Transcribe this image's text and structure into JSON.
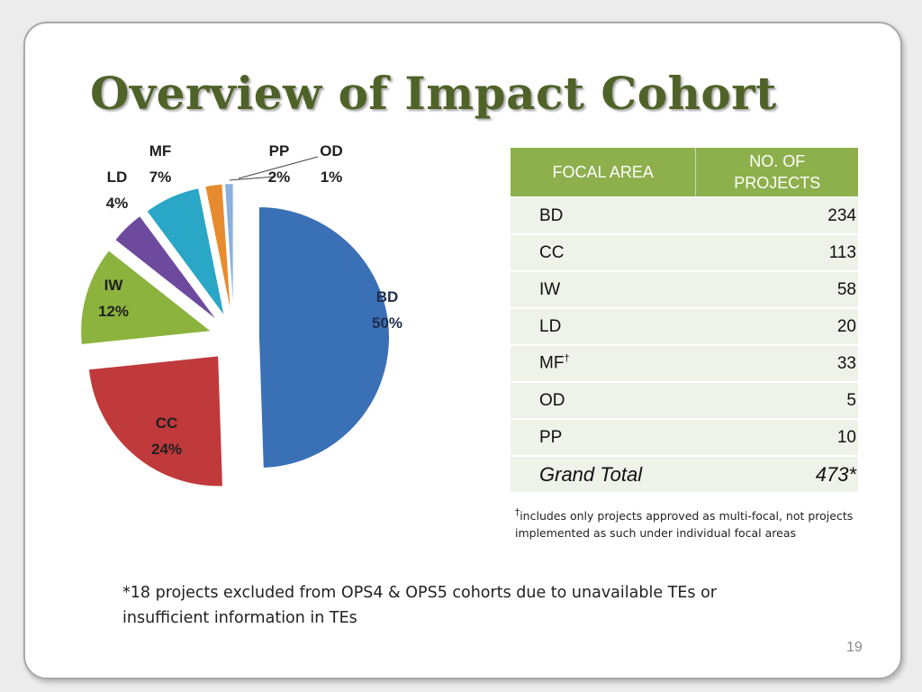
{
  "title": "Overview of Impact Cohort",
  "chart_data": {
    "type": "pie",
    "title": "",
    "slices": [
      {
        "label": "BD",
        "pct_label": "50%",
        "value": 234,
        "color": "#3a70b5"
      },
      {
        "label": "CC",
        "pct_label": "24%",
        "value": 113,
        "color": "#c0393b"
      },
      {
        "label": "IW",
        "pct_label": "12%",
        "value": 58,
        "color": "#8cb33d"
      },
      {
        "label": "LD",
        "pct_label": "4%",
        "value": 20,
        "color": "#6e4a9e"
      },
      {
        "label": "MF",
        "pct_label": "7%",
        "value": 33,
        "color": "#2aa6c6"
      },
      {
        "label": "PP",
        "pct_label": "2%",
        "value": 10,
        "color": "#e88b2e"
      },
      {
        "label": "OD",
        "pct_label": "1%",
        "value": 5,
        "color": "#8ab0de"
      }
    ]
  },
  "table": {
    "header_focal": "FOCAL AREA",
    "header_projects_line1": "NO. OF",
    "header_projects_line2": "PROJECTS",
    "rows": [
      {
        "area": "BD",
        "count": "234"
      },
      {
        "area": "CC",
        "count": "113"
      },
      {
        "area": "IW",
        "count": "58"
      },
      {
        "area": "LD",
        "count": "20"
      },
      {
        "area": "MF",
        "count": "33",
        "mark": "†"
      },
      {
        "area": "OD",
        "count": "5"
      },
      {
        "area": "PP",
        "count": "10"
      }
    ],
    "total_label": "Grand Total",
    "total_value": "473*"
  },
  "footnote_mark": "†",
  "footnote_text": "includes only projects approved as multi-focal, not projects implemented as such under individual focal areas",
  "bottom_note": "*18 projects excluded from OPS4 & OPS5 cohorts due to unavailable TEs or insufficient information in TEs",
  "page_number": "19"
}
